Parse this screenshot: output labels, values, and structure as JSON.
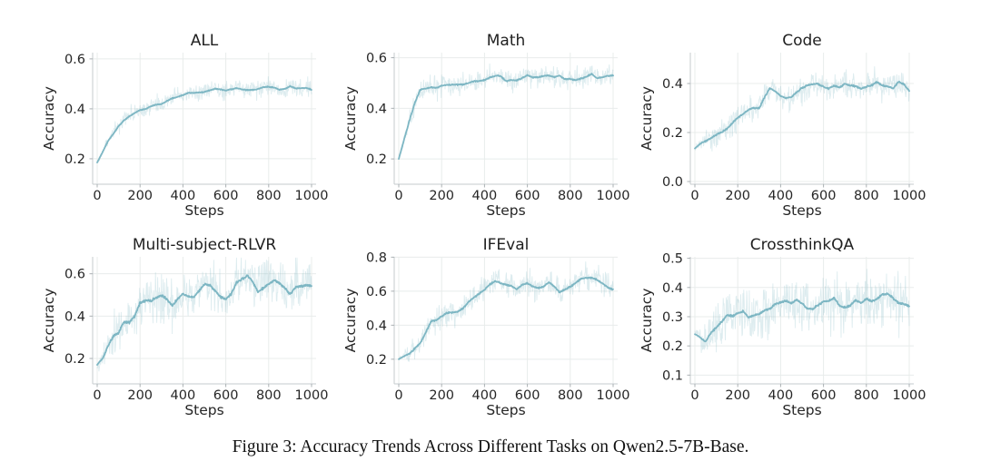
{
  "caption": "Figure 3: Accuracy Trends Across Different Tasks on Qwen2.5-7B-Base.",
  "style": {
    "background": "#ffffff",
    "smoothed_line_color": "#7db6c3",
    "raw_line_color": "#86b9c6",
    "raw_line_opacity": 0.28,
    "grid_color": "#e8eceb",
    "spine_color": "#c6cbce",
    "tick_mark_color": "#aab0b3",
    "text_color": "#262626",
    "caption_color": "#111111"
  },
  "chart_data": [
    {
      "type": "line",
      "title": "ALL",
      "xlabel": "Steps",
      "ylabel": "Accuracy",
      "x": [
        0,
        50,
        100,
        150,
        200,
        250,
        300,
        350,
        400,
        450,
        500,
        550,
        600,
        650,
        700,
        750,
        800,
        850,
        900,
        950,
        1000
      ],
      "smoothed_values": [
        0.185,
        0.27,
        0.33,
        0.375,
        0.395,
        0.41,
        0.42,
        0.44,
        0.455,
        0.465,
        0.47,
        0.48,
        0.475,
        0.48,
        0.475,
        0.485,
        0.49,
        0.48,
        0.485,
        0.49,
        0.475
      ],
      "raw_noise_amplitude": 0.035,
      "smooth_wiggle_amplitude": 0.007,
      "xlim": [
        0,
        1000
      ],
      "ylim": [
        0.098,
        0.625
      ],
      "xticks": [
        0,
        200,
        400,
        600,
        800,
        1000
      ],
      "yticks": [
        0.2,
        0.4,
        0.6
      ],
      "grid": true,
      "legend": false
    },
    {
      "type": "line",
      "title": "Math",
      "xlabel": "Steps",
      "ylabel": "Accuracy",
      "x": [
        0,
        50,
        100,
        150,
        200,
        250,
        300,
        350,
        400,
        450,
        500,
        550,
        600,
        650,
        700,
        750,
        800,
        850,
        900,
        950,
        1000
      ],
      "smoothed_values": [
        0.2,
        0.36,
        0.47,
        0.49,
        0.485,
        0.495,
        0.5,
        0.505,
        0.51,
        0.53,
        0.515,
        0.51,
        0.525,
        0.52,
        0.53,
        0.525,
        0.515,
        0.52,
        0.53,
        0.52,
        0.525
      ],
      "raw_noise_amplitude": 0.042,
      "smooth_wiggle_amplitude": 0.009,
      "xlim": [
        0,
        1000
      ],
      "ylim": [
        0.1,
        0.62
      ],
      "xticks": [
        0,
        200,
        400,
        600,
        800,
        1000
      ],
      "yticks": [
        0.2,
        0.4,
        0.6
      ],
      "grid": true,
      "legend": false
    },
    {
      "type": "line",
      "title": "Code",
      "xlabel": "Steps",
      "ylabel": "Accuracy",
      "x": [
        0,
        50,
        100,
        150,
        200,
        250,
        300,
        350,
        400,
        450,
        500,
        550,
        600,
        650,
        700,
        750,
        800,
        850,
        900,
        950,
        1000
      ],
      "smoothed_values": [
        0.135,
        0.165,
        0.19,
        0.225,
        0.26,
        0.295,
        0.31,
        0.38,
        0.345,
        0.345,
        0.38,
        0.4,
        0.39,
        0.38,
        0.395,
        0.39,
        0.38,
        0.4,
        0.38,
        0.41,
        0.37
      ],
      "raw_noise_amplitude": 0.055,
      "smooth_wiggle_amplitude": 0.012,
      "xlim": [
        0,
        1000
      ],
      "ylim": [
        -0.011,
        0.526
      ],
      "xticks": [
        0,
        200,
        400,
        600,
        800,
        1000
      ],
      "yticks": [
        0.0,
        0.2,
        0.4
      ],
      "grid": true,
      "legend": false
    },
    {
      "type": "line",
      "title": "Multi-subject-RLVR",
      "xlabel": "Steps",
      "ylabel": "Accuracy",
      "x": [
        0,
        50,
        100,
        150,
        200,
        250,
        300,
        350,
        400,
        450,
        500,
        550,
        600,
        650,
        700,
        750,
        800,
        850,
        900,
        950,
        1000
      ],
      "smoothed_values": [
        0.17,
        0.24,
        0.33,
        0.38,
        0.45,
        0.48,
        0.485,
        0.45,
        0.51,
        0.5,
        0.545,
        0.52,
        0.49,
        0.555,
        0.6,
        0.53,
        0.55,
        0.57,
        0.52,
        0.53,
        0.55
      ],
      "raw_noise_amplitude": 0.105,
      "smooth_wiggle_amplitude": 0.02,
      "xlim": [
        0,
        1000
      ],
      "ylim": [
        0.08,
        0.68
      ],
      "xticks": [
        0,
        200,
        400,
        600,
        800,
        1000
      ],
      "yticks": [
        0.2,
        0.4,
        0.6
      ],
      "grid": true,
      "legend": false
    },
    {
      "type": "line",
      "title": "IFEval",
      "xlabel": "Steps",
      "ylabel": "Accuracy",
      "x": [
        0,
        50,
        100,
        150,
        200,
        250,
        300,
        350,
        400,
        450,
        500,
        550,
        600,
        650,
        700,
        750,
        800,
        850,
        900,
        950,
        1000
      ],
      "smoothed_values": [
        0.2,
        0.235,
        0.3,
        0.42,
        0.45,
        0.465,
        0.5,
        0.555,
        0.62,
        0.655,
        0.64,
        0.62,
        0.645,
        0.62,
        0.65,
        0.6,
        0.63,
        0.67,
        0.69,
        0.65,
        0.61
      ],
      "raw_noise_amplitude": 0.075,
      "smooth_wiggle_amplitude": 0.016,
      "xlim": [
        0,
        1000
      ],
      "ylim": [
        0.055,
        0.802
      ],
      "xticks": [
        0,
        200,
        400,
        600,
        800,
        1000
      ],
      "yticks": [
        0.2,
        0.4,
        0.6,
        0.8
      ],
      "grid": true,
      "legend": false
    },
    {
      "type": "line",
      "title": "CrossthinkQA",
      "xlabel": "Steps",
      "ylabel": "Accuracy",
      "x": [
        0,
        50,
        100,
        150,
        200,
        250,
        300,
        350,
        400,
        450,
        500,
        550,
        600,
        650,
        700,
        750,
        800,
        850,
        900,
        950,
        1000
      ],
      "smoothed_values": [
        0.24,
        0.225,
        0.26,
        0.3,
        0.31,
        0.305,
        0.315,
        0.33,
        0.355,
        0.36,
        0.35,
        0.33,
        0.345,
        0.36,
        0.325,
        0.35,
        0.365,
        0.36,
        0.375,
        0.355,
        0.335
      ],
      "raw_noise_amplitude": 0.085,
      "smooth_wiggle_amplitude": 0.013,
      "xlim": [
        0,
        1000
      ],
      "ylim": [
        0.07,
        0.505
      ],
      "xticks": [
        0,
        200,
        400,
        600,
        800,
        1000
      ],
      "yticks": [
        0.1,
        0.2,
        0.3,
        0.4,
        0.5
      ],
      "grid": true,
      "legend": false
    }
  ]
}
